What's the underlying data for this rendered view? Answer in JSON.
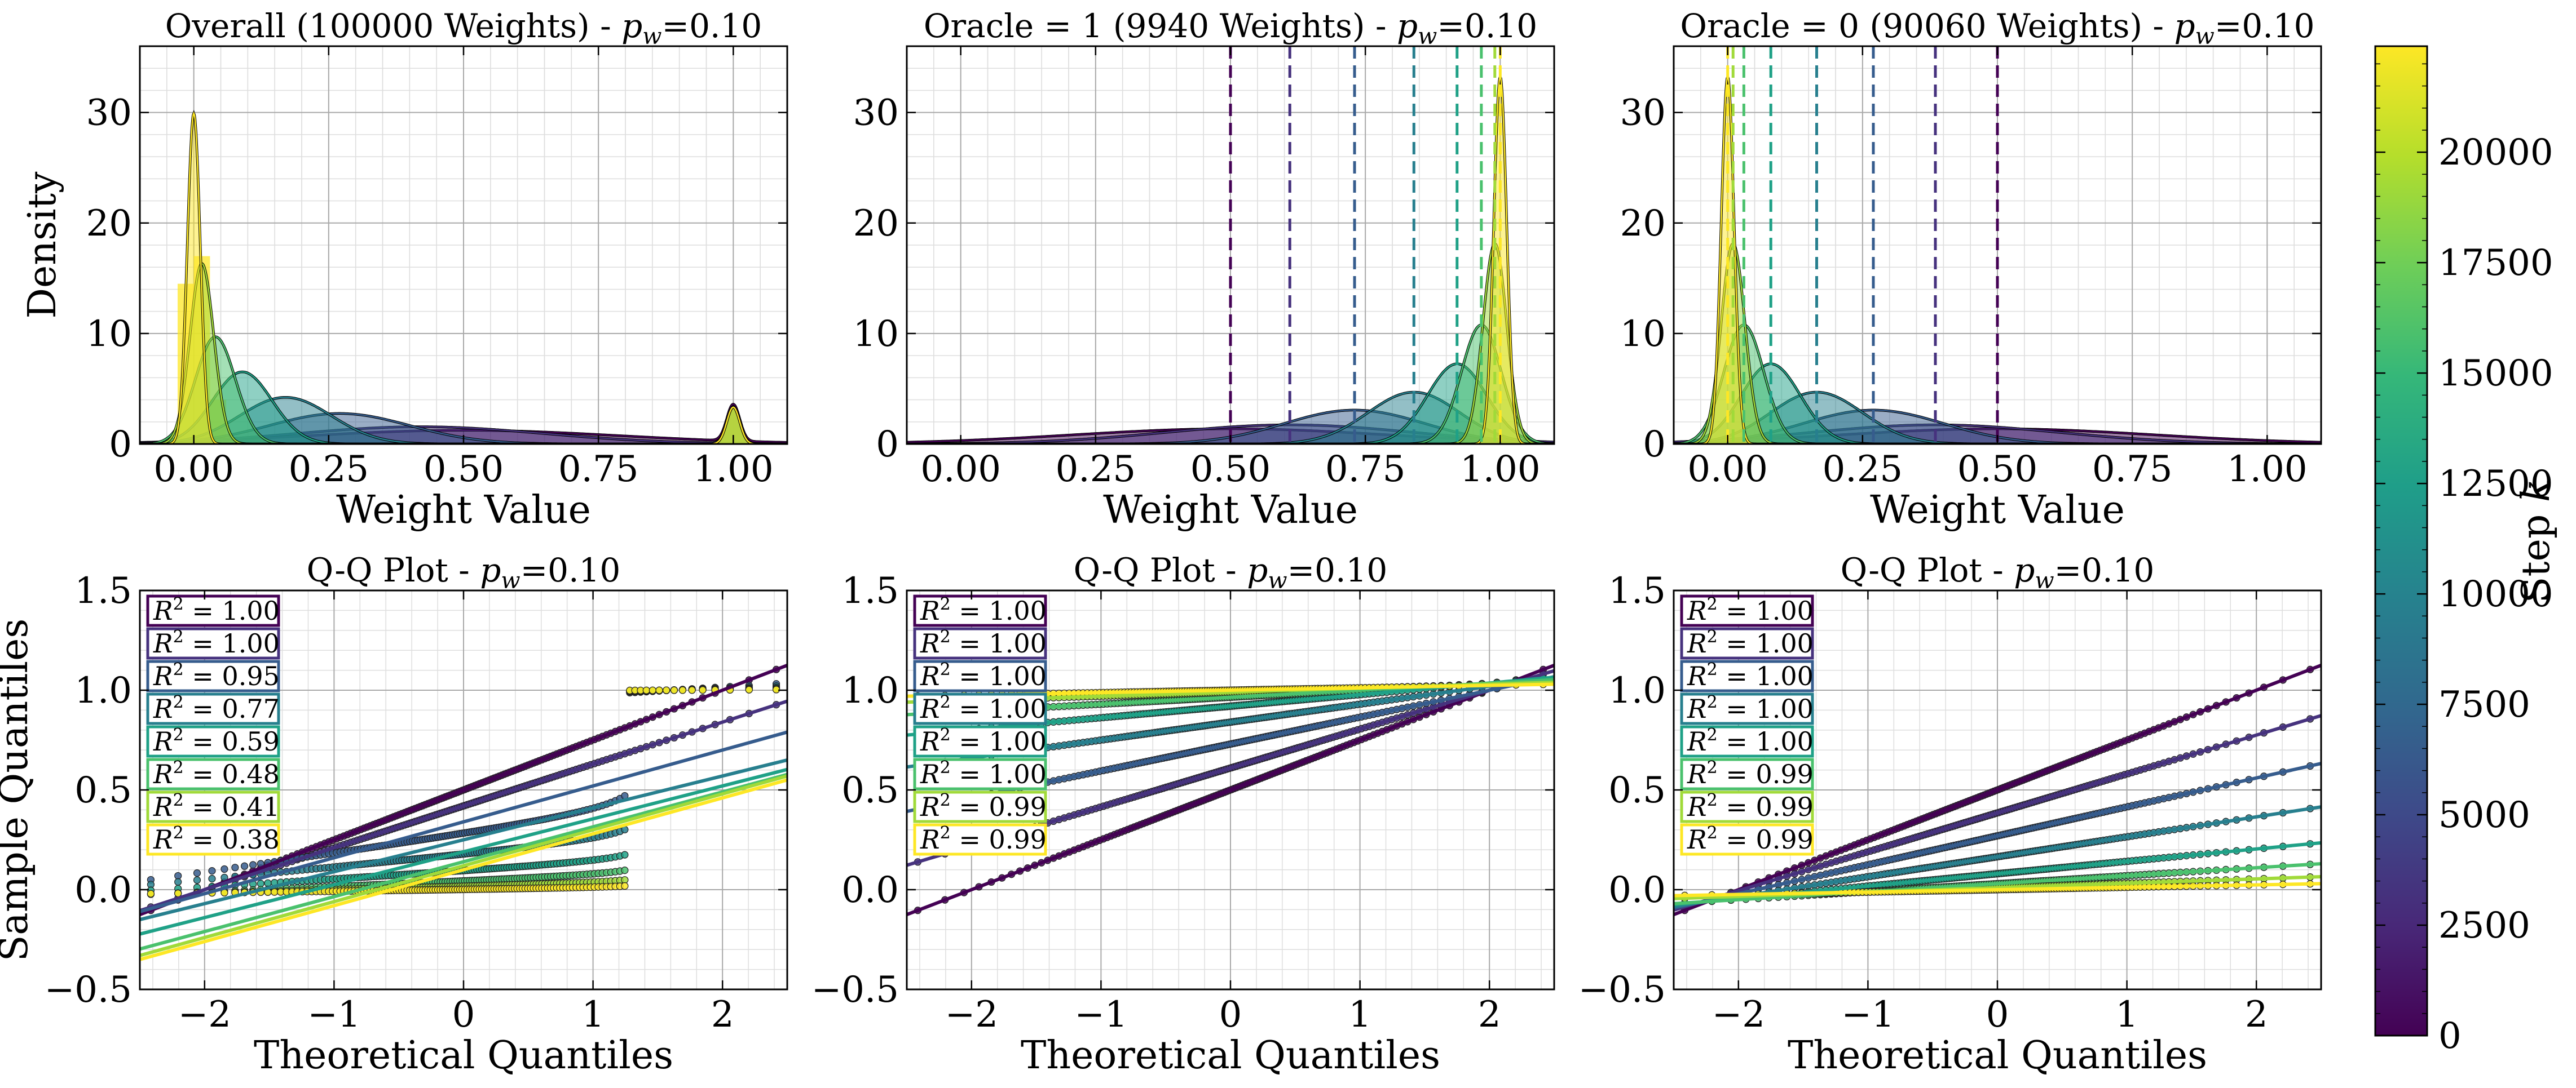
{
  "figure": {
    "colorbar": {
      "label": "Step k",
      "min": 0,
      "max": 22400,
      "ticks": [
        0,
        2500,
        5000,
        7500,
        10000,
        12500,
        15000,
        17500,
        20000
      ]
    },
    "palette": [
      "#440154",
      "#46327e",
      "#365c8d",
      "#277f8e",
      "#1fa187",
      "#4ac16d",
      "#a0da39",
      "#fde725"
    ]
  },
  "chart_data": [
    {
      "type": "area",
      "panel": "density-overall",
      "title": "Overall (100000 Weights) - p_w=0.10",
      "xlabel": "Weight Value",
      "ylabel": "Density",
      "xlim": [
        -0.1,
        1.1
      ],
      "ylim": [
        0,
        36
      ],
      "xticks": [
        "0.00",
        "0.25",
        "0.50",
        "0.75",
        "1.00"
      ],
      "yticks": [
        "0",
        "10",
        "20",
        "30"
      ],
      "grid": true,
      "series": [
        {
          "components": [
            {
              "w": 0.9,
              "mu": 0.5,
              "sd": 0.29
            },
            {
              "w": 0.1,
              "mu": 1.0,
              "sd": 0.012
            }
          ]
        },
        {
          "components": [
            {
              "w": 0.9,
              "mu": 0.42,
              "sd": 0.23
            },
            {
              "w": 0.1,
              "mu": 1.0,
              "sd": 0.012
            }
          ]
        },
        {
          "components": [
            {
              "w": 0.9,
              "mu": 0.27,
              "sd": 0.13
            },
            {
              "w": 0.1,
              "mu": 1.0,
              "sd": 0.012
            }
          ]
        },
        {
          "components": [
            {
              "w": 0.9,
              "mu": 0.17,
              "sd": 0.085
            },
            {
              "w": 0.1,
              "mu": 1.0,
              "sd": 0.012
            }
          ]
        },
        {
          "components": [
            {
              "w": 0.9,
              "mu": 0.09,
              "sd": 0.055
            },
            {
              "w": 0.1,
              "mu": 1.0,
              "sd": 0.012
            }
          ]
        },
        {
          "components": [
            {
              "w": 0.9,
              "mu": 0.04,
              "sd": 0.037
            },
            {
              "w": 0.1,
              "mu": 1.0,
              "sd": 0.012
            }
          ]
        },
        {
          "components": [
            {
              "w": 0.9,
              "mu": 0.015,
              "sd": 0.022
            },
            {
              "w": 0.1,
              "mu": 1.0,
              "sd": 0.012
            }
          ]
        },
        {
          "components": [
            {
              "w": 0.9,
              "mu": 0.0,
              "sd": 0.012
            },
            {
              "w": 0.1,
              "mu": 1.0,
              "sd": 0.012
            }
          ]
        }
      ],
      "vlines": []
    },
    {
      "type": "area",
      "panel": "density-oracle-1",
      "title": "Oracle = 1 (9940 Weights) - p_w=0.10",
      "xlabel": "Weight Value",
      "ylabel": "",
      "xlim": [
        -0.1,
        1.1
      ],
      "ylim": [
        0,
        36
      ],
      "xticks": [
        "0.00",
        "0.25",
        "0.50",
        "0.75",
        "1.00"
      ],
      "yticks": [
        "0",
        "10",
        "20",
        "30"
      ],
      "grid": true,
      "series": [
        {
          "components": [
            {
              "w": 1,
              "mu": 0.5,
              "sd": 0.29
            }
          ]
        },
        {
          "components": [
            {
              "w": 1,
              "mu": 0.61,
              "sd": 0.23
            }
          ]
        },
        {
          "components": [
            {
              "w": 1,
              "mu": 0.73,
              "sd": 0.13
            }
          ]
        },
        {
          "components": [
            {
              "w": 1,
              "mu": 0.84,
              "sd": 0.085
            }
          ]
        },
        {
          "components": [
            {
              "w": 1,
              "mu": 0.92,
              "sd": 0.055
            }
          ]
        },
        {
          "components": [
            {
              "w": 1,
              "mu": 0.965,
              "sd": 0.037
            }
          ]
        },
        {
          "components": [
            {
              "w": 1,
              "mu": 0.99,
              "sd": 0.022
            }
          ]
        },
        {
          "components": [
            {
              "w": 1,
              "mu": 1.0,
              "sd": 0.012
            }
          ]
        }
      ],
      "vlines": [
        0.5,
        0.61,
        0.73,
        0.84,
        0.92,
        0.965,
        0.99,
        1.0
      ]
    },
    {
      "type": "area",
      "panel": "density-oracle-0",
      "title": "Oracle = 0 (90060 Weights) - p_w=0.10",
      "xlabel": "Weight Value",
      "ylabel": "",
      "xlim": [
        -0.1,
        1.1
      ],
      "ylim": [
        0,
        36
      ],
      "xticks": [
        "0.00",
        "0.25",
        "0.50",
        "0.75",
        "1.00"
      ],
      "yticks": [
        "0",
        "10",
        "20",
        "30"
      ],
      "grid": true,
      "series": [
        {
          "components": [
            {
              "w": 1,
              "mu": 0.5,
              "sd": 0.29
            }
          ]
        },
        {
          "components": [
            {
              "w": 1,
              "mu": 0.385,
              "sd": 0.23
            }
          ]
        },
        {
          "components": [
            {
              "w": 1,
              "mu": 0.27,
              "sd": 0.13
            }
          ]
        },
        {
          "components": [
            {
              "w": 1,
              "mu": 0.165,
              "sd": 0.085
            }
          ]
        },
        {
          "components": [
            {
              "w": 1,
              "mu": 0.08,
              "sd": 0.055
            }
          ]
        },
        {
          "components": [
            {
              "w": 1,
              "mu": 0.03,
              "sd": 0.037
            }
          ]
        },
        {
          "components": [
            {
              "w": 1,
              "mu": 0.01,
              "sd": 0.022
            }
          ]
        },
        {
          "components": [
            {
              "w": 1,
              "mu": 0.0,
              "sd": 0.012
            }
          ]
        }
      ],
      "vlines": [
        0.5,
        0.385,
        0.27,
        0.165,
        0.08,
        0.03,
        0.01,
        0.0
      ]
    },
    {
      "type": "scatter",
      "panel": "qq-overall",
      "title": "Q-Q Plot - p_w=0.10",
      "xlabel": "Theoretical Quantiles",
      "ylabel": "Sample Quantiles",
      "xlim": [
        -2.5,
        2.5
      ],
      "ylim": [
        -0.5,
        1.5
      ],
      "xticks": [
        "−2",
        "−1",
        "0",
        "1",
        "2"
      ],
      "yticks": [
        "−0.5",
        "0.0",
        "0.5",
        "1.0",
        "1.5"
      ],
      "grid": true,
      "r2_labels": [
        "R^2 = 1.00",
        "R^2 = 1.00",
        "R^2 = 0.95",
        "R^2 = 0.77",
        "R^2 = 0.59",
        "R^2 = 0.48",
        "R^2 = 0.41",
        "R^2 = 0.38"
      ],
      "fit_lines": [
        {
          "intercept": 0.5,
          "slope": 0.25
        },
        {
          "intercept": 0.42,
          "slope": 0.21
        },
        {
          "intercept": 0.34,
          "slope": 0.18
        },
        {
          "intercept": 0.25,
          "slope": 0.16
        },
        {
          "intercept": 0.19,
          "slope": 0.165
        },
        {
          "intercept": 0.14,
          "slope": 0.175
        },
        {
          "intercept": 0.12,
          "slope": 0.18
        },
        {
          "intercept": 0.1,
          "slope": 0.18
        }
      ],
      "sample_rule": "mixture",
      "step_sds": [
        0.29,
        0.23,
        0.13,
        0.085,
        0.055,
        0.037,
        0.022,
        0.012
      ]
    },
    {
      "type": "scatter",
      "panel": "qq-oracle-1",
      "title": "Q-Q Plot - p_w=0.10",
      "xlabel": "Theoretical Quantiles",
      "ylabel": "",
      "xlim": [
        -2.5,
        2.5
      ],
      "ylim": [
        -0.5,
        1.5
      ],
      "xticks": [
        "−2",
        "−1",
        "0",
        "1",
        "2"
      ],
      "yticks": [
        "−0.5",
        "0.0",
        "0.5",
        "1.0",
        "1.5"
      ],
      "grid": true,
      "r2_labels": [
        "R^2 = 1.00",
        "R^2 = 1.00",
        "R^2 = 1.00",
        "R^2 = 1.00",
        "R^2 = 1.00",
        "R^2 = 1.00",
        "R^2 = 0.99",
        "R^2 = 0.99"
      ],
      "fit_lines": [
        {
          "intercept": 0.5,
          "slope": 0.25
        },
        {
          "intercept": 0.61,
          "slope": 0.195
        },
        {
          "intercept": 0.73,
          "slope": 0.135
        },
        {
          "intercept": 0.84,
          "slope": 0.09
        },
        {
          "intercept": 0.92,
          "slope": 0.058
        },
        {
          "intercept": 0.965,
          "slope": 0.035
        },
        {
          "intercept": 0.99,
          "slope": 0.02
        },
        {
          "intercept": 1.0,
          "slope": 0.012
        }
      ],
      "sample_rule": "line"
    },
    {
      "type": "scatter",
      "panel": "qq-oracle-0",
      "title": "Q-Q Plot - p_w=0.10",
      "xlabel": "Theoretical Quantiles",
      "ylabel": "",
      "xlim": [
        -2.5,
        2.5
      ],
      "ylim": [
        -0.5,
        1.5
      ],
      "xticks": [
        "−2",
        "−1",
        "0",
        "1",
        "2"
      ],
      "yticks": [
        "−0.5",
        "0.0",
        "0.5",
        "1.0",
        "1.5"
      ],
      "grid": true,
      "r2_labels": [
        "R^2 = 1.00",
        "R^2 = 1.00",
        "R^2 = 1.00",
        "R^2 = 1.00",
        "R^2 = 1.00",
        "R^2 = 0.99",
        "R^2 = 0.99",
        "R^2 = 0.99"
      ],
      "fit_lines": [
        {
          "intercept": 0.5,
          "slope": 0.25
        },
        {
          "intercept": 0.385,
          "slope": 0.195
        },
        {
          "intercept": 0.27,
          "slope": 0.145
        },
        {
          "intercept": 0.165,
          "slope": 0.1
        },
        {
          "intercept": 0.08,
          "slope": 0.062
        },
        {
          "intercept": 0.03,
          "slope": 0.04
        },
        {
          "intercept": 0.01,
          "slope": 0.022
        },
        {
          "intercept": 0.0,
          "slope": 0.012
        }
      ],
      "sample_rule": "line"
    }
  ]
}
